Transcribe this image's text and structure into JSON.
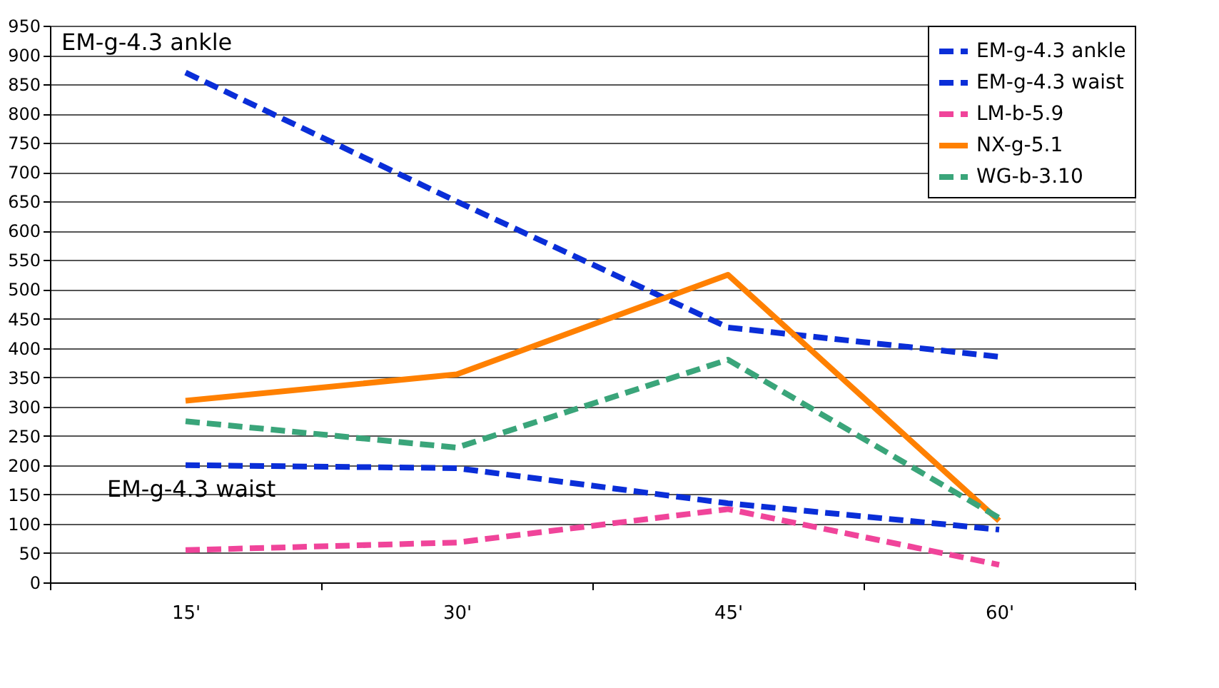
{
  "chart_data": {
    "type": "line",
    "categories": [
      "15'",
      "30'",
      "45'",
      "60'"
    ],
    "series": [
      {
        "name": "EM-g-4.3 ankle",
        "color": "#0a2ed8",
        "values": [
          870,
          650,
          435,
          385
        ],
        "line_style": "dashed"
      },
      {
        "name": "EM-g-4.3 waist",
        "color": "#0a2ed8",
        "values": [
          200,
          195,
          135,
          90
        ],
        "line_style": "dashed"
      },
      {
        "name": "LM-b-5.9",
        "color": "#f0449a",
        "values": [
          55,
          68,
          125,
          30
        ],
        "line_style": "dashed"
      },
      {
        "name": "NX-g-5.1",
        "color": "#ff8000",
        "values": [
          310,
          355,
          525,
          105
        ],
        "line_style": "solid"
      },
      {
        "name": "WG-b-3.10",
        "color": "#3aa57a",
        "values": [
          275,
          230,
          380,
          110
        ],
        "line_style": "dashed"
      }
    ],
    "ylim": [
      0,
      950
    ],
    "yticks": [
      0,
      50,
      100,
      150,
      200,
      250,
      300,
      350,
      400,
      450,
      500,
      550,
      600,
      650,
      700,
      750,
      800,
      850,
      900,
      950
    ],
    "grid": "y",
    "legend": "top right",
    "marker": "none",
    "annotations": [
      "EM-g-4.3 ankle",
      "EM-g-4.3 waist"
    ]
  }
}
